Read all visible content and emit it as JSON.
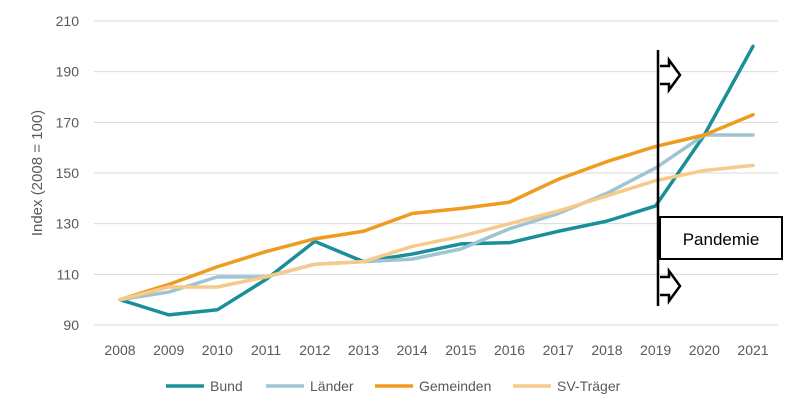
{
  "chart_data": {
    "type": "line",
    "title": "",
    "xlabel": "",
    "ylabel": "Index (2008 = 100)",
    "ylim": [
      90,
      210
    ],
    "yticks": [
      90,
      110,
      130,
      150,
      170,
      190,
      210
    ],
    "grid": true,
    "legend_position": "bottom",
    "categories": [
      "2008",
      "2009",
      "2010",
      "2011",
      "2012",
      "2013",
      "2014",
      "2015",
      "2016",
      "2017",
      "2018",
      "2019",
      "2020",
      "2021"
    ],
    "series": [
      {
        "name": "Bund",
        "color": "#1a8f9a",
        "values": [
          100,
          94,
          96,
          108,
          123,
          115,
          118,
          122,
          122.5,
          127,
          131,
          137,
          165,
          200
        ]
      },
      {
        "name": "Länder",
        "color": "#9fc4d2",
        "values": [
          100,
          103,
          109,
          109,
          114,
          115,
          116,
          120,
          128,
          134,
          142,
          152,
          165,
          165
        ]
      },
      {
        "name": "Gemeinden",
        "color": "#ee9b1f",
        "values": [
          100,
          106,
          113,
          119,
          124,
          127,
          134,
          136,
          138.5,
          147.5,
          154.5,
          160.5,
          165,
          173
        ]
      },
      {
        "name": "SV-Träger",
        "color": "#f7c98a",
        "values": [
          100,
          105,
          105,
          109,
          114,
          115,
          121,
          125,
          130,
          135,
          141,
          147,
          151,
          153
        ]
      }
    ],
    "annotation": {
      "label": "Pandemie",
      "at_category": "2019"
    }
  }
}
